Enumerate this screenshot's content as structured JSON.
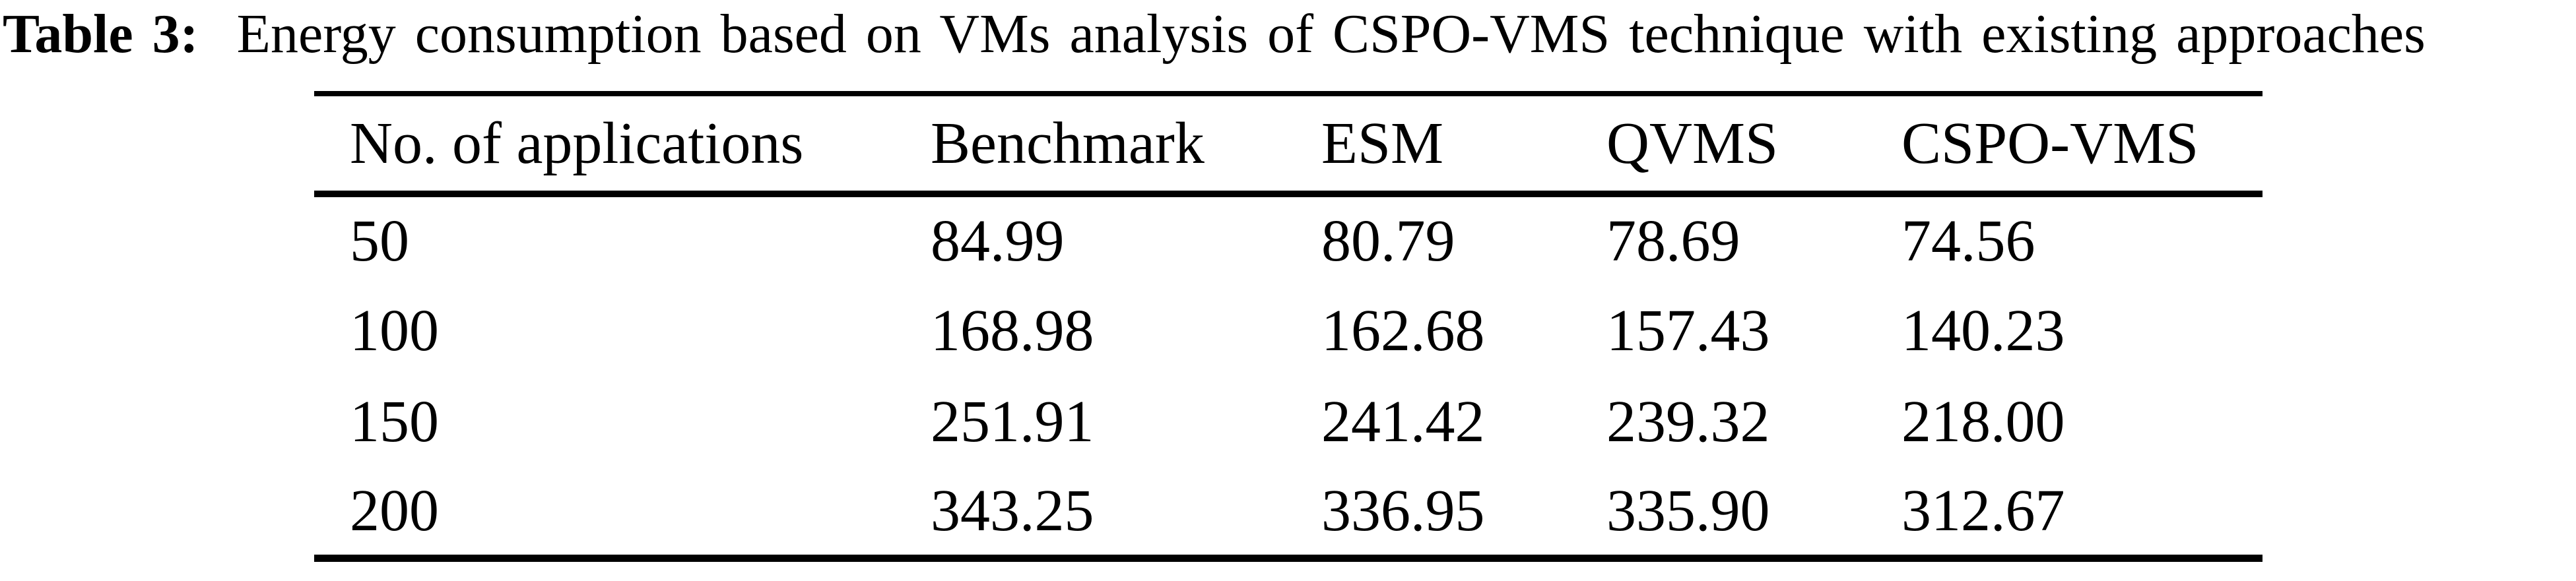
{
  "caption": {
    "label": "Table 3:",
    "text": "Energy consumption based on VMs analysis of CSPO-VMS technique with existing approaches"
  },
  "table": {
    "columns": [
      "No. of applications",
      "Benchmark",
      "ESM",
      "QVMS",
      "CSPO-VMS"
    ],
    "rows": [
      [
        "50",
        "84.99",
        "80.79",
        "78.69",
        "74.56"
      ],
      [
        "100",
        "168.98",
        "162.68",
        "157.43",
        "140.23"
      ],
      [
        "150",
        "251.91",
        "241.42",
        "239.32",
        "218.00"
      ],
      [
        "200",
        "343.25",
        "336.95",
        "335.90",
        "312.67"
      ]
    ]
  },
  "colors": {
    "text": "#000000",
    "background": "#ffffff",
    "rules": "#000000"
  }
}
